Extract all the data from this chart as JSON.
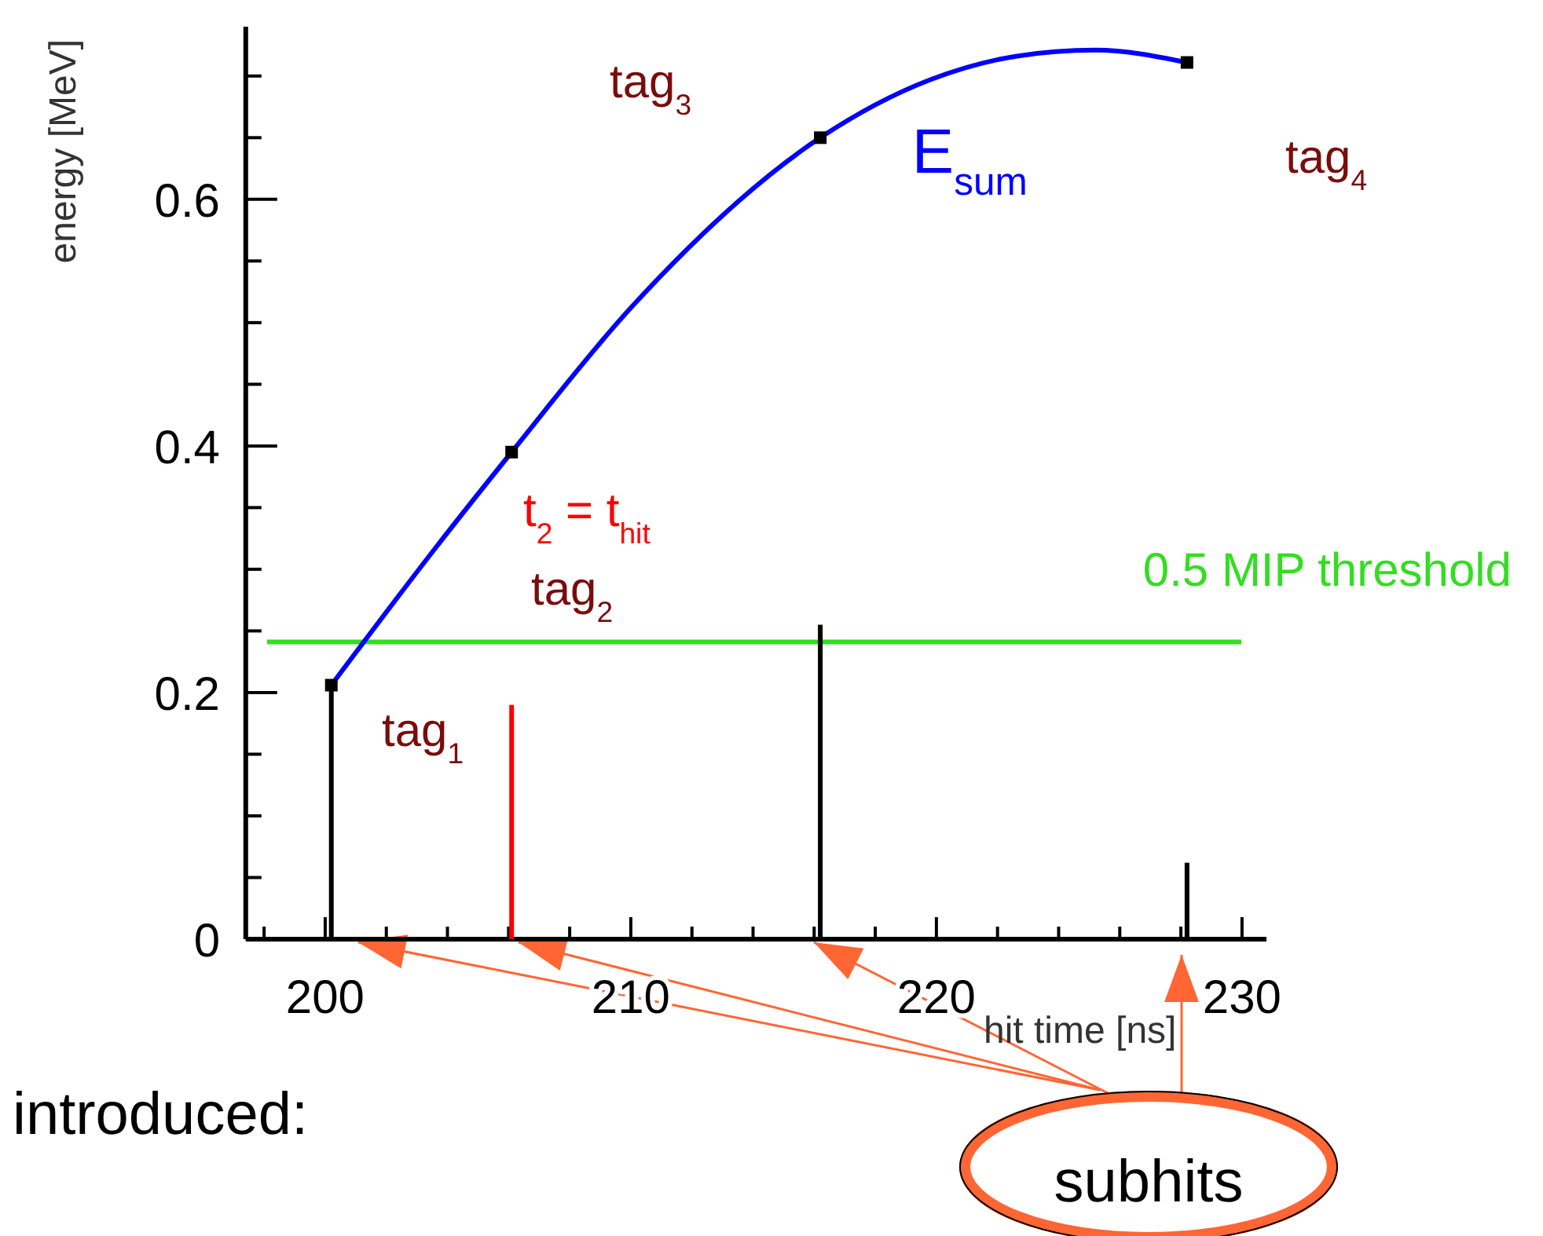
{
  "chart_data": {
    "type": "line",
    "xlabel": "hit time [ns]",
    "ylabel": "energy [MeV]",
    "xlim": [
      197.4,
      230.8
    ],
    "xticks": [
      {
        "value": 198,
        "label": null
      },
      200,
      {
        "value": 202,
        "label": null
      },
      {
        "value": 204,
        "label": null
      },
      {
        "value": 206,
        "label": null
      },
      {
        "value": 208,
        "label": null
      },
      210,
      {
        "value": 212,
        "label": null
      },
      {
        "value": 214,
        "label": null
      },
      {
        "value": 216,
        "label": null
      },
      {
        "value": 218,
        "label": null
      },
      220,
      {
        "value": 222,
        "label": null
      },
      {
        "value": 224,
        "label": null
      },
      {
        "value": 226,
        "label": null
      },
      {
        "value": 228,
        "label": null
      },
      230
    ],
    "ylim": [
      0,
      0.74
    ],
    "yticks": [
      0,
      {
        "value": 0.05,
        "label": null
      },
      {
        "value": 0.1,
        "label": null
      },
      {
        "value": 0.15,
        "label": null
      },
      {
        "value": 0.2,
        "label": "0.2"
      },
      {
        "value": 0.25,
        "label": null
      },
      {
        "value": 0.3,
        "label": null
      },
      {
        "value": 0.35,
        "label": null
      },
      {
        "value": 0.4,
        "label": "0.4"
      },
      {
        "value": 0.45,
        "label": null
      },
      {
        "value": 0.5,
        "label": null
      },
      {
        "value": 0.55,
        "label": null
      },
      {
        "value": 0.6,
        "label": "0.6"
      },
      {
        "value": 0.65,
        "label": null
      },
      {
        "value": 0.7,
        "label": null
      }
    ],
    "series": [
      {
        "type": "bar",
        "x": [
          200.2,
          206.1,
          216.2,
          228.2
        ],
        "values": [
          0.206,
          0.19,
          0.255,
          0.062
        ],
        "colors": [
          "#000000",
          "#ff0000",
          "#000000",
          "#000000"
        ]
      },
      {
        "name": "E$_{sum}$",
        "color": "#0000ff",
        "marker": "none",
        "line_style": "solid",
        "x": [
          200.2,
          203.6,
          206.1,
          210.0,
          216.2,
          219.8,
          222.6,
          225.2,
          228.2
        ],
        "values": [
          0.206,
          0.317,
          0.395,
          0.512,
          0.65,
          0.697,
          0.716,
          0.721,
          0.711
        ]
      },
      {
        "type": "scatter",
        "color": "#000000",
        "marker": "square",
        "x": [
          200.2,
          206.1,
          216.2,
          228.2
        ],
        "values": [
          0.206,
          0.395,
          0.65,
          0.711
        ]
      }
    ],
    "ref_lines": [
      {
        "axis": "y",
        "value": 0.241,
        "label": "0.5 MIP threshold",
        "color": "#33dd22"
      }
    ],
    "annotations": [
      "tag$_{3}$",
      "tag$_{4}$",
      "t$_{2}$ = t$_{hit}$",
      "tag$_{2}$",
      "tag$_{1}$",
      "introduced:",
      "subhits"
    ]
  }
}
